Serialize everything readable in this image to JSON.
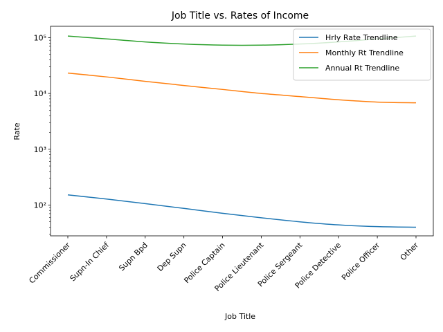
{
  "chart_data": {
    "type": "line",
    "title": "Job Title vs. Rates of Income",
    "xlabel": "Job Title",
    "ylabel": "Rate",
    "yscale": "log",
    "ylim": [
      28,
      160000
    ],
    "ytick_values": [
      100,
      1000,
      10000,
      100000
    ],
    "ytick_labels": [
      "10²",
      "10³",
      "10⁴",
      "10⁵"
    ],
    "categories": [
      "Commissioner",
      "Supn-In Chief",
      "Supn Bpd",
      "Dep Supn",
      "Police Captain",
      "Police Lieutenant",
      "Police Sergeant",
      "Police Detective",
      "Police Officer",
      "Other"
    ],
    "legend_position": "upper-right",
    "grid": false,
    "series": [
      {
        "name": "Hrly Rate Trendline",
        "color": "#1f77b4",
        "values": [
          152,
          128,
          106,
          87,
          71,
          59,
          50,
          44,
          41,
          40
        ]
      },
      {
        "name": "Monthly Rt Trendline",
        "color": "#ff7f0e",
        "values": [
          23200,
          19800,
          16500,
          13900,
          11800,
          10000,
          8800,
          7700,
          7000,
          6800
        ]
      },
      {
        "name": "Annual Rt Trendline",
        "color": "#2ca02c",
        "values": [
          107000,
          95000,
          84000,
          77000,
          73500,
          73500,
          77000,
          84000,
          95000,
          107000
        ]
      }
    ]
  }
}
